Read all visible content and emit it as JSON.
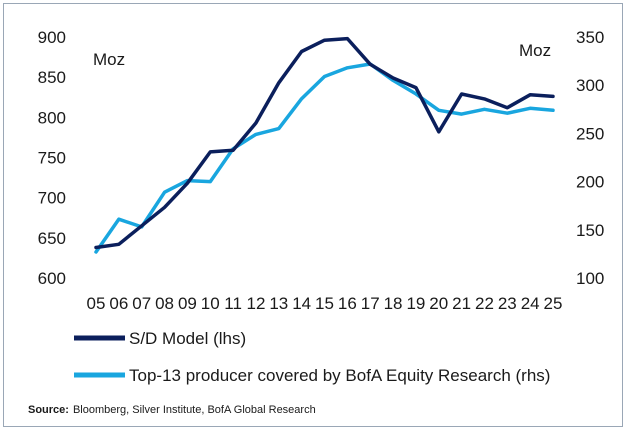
{
  "chart_data": {
    "type": "line",
    "categories": [
      "05",
      "06",
      "07",
      "08",
      "09",
      "10",
      "11",
      "12",
      "13",
      "14",
      "15",
      "16",
      "17",
      "18",
      "19",
      "20",
      "21",
      "22",
      "23",
      "24",
      "25"
    ],
    "series": [
      {
        "name": "S/D Model (lhs)",
        "axis": "left",
        "color": "#0b1f5c",
        "values": [
          638,
          642,
          665,
          688,
          718,
          757,
          759,
          793,
          843,
          882,
          896,
          898,
          866,
          849,
          837,
          782,
          829,
          823,
          812,
          828,
          826
        ]
      },
      {
        "name": "Top-13 producer covered by BofA Equity Research (rhs)",
        "axis": "right",
        "color": "#19a6df",
        "values": [
          127,
          161,
          153,
          189,
          201,
          200,
          234,
          249,
          255,
          286,
          309,
          318,
          322,
          305,
          291,
          274,
          270,
          275,
          271,
          276,
          274
        ]
      }
    ],
    "left_axis": {
      "unit": "Moz",
      "range": [
        600,
        900
      ],
      "ticks": [
        "900",
        "850",
        "800",
        "750",
        "700",
        "650",
        "600"
      ]
    },
    "right_axis": {
      "unit": "Moz",
      "range": [
        100,
        350
      ],
      "ticks": [
        "350",
        "300",
        "250",
        "200",
        "150",
        "100"
      ]
    },
    "grid": false,
    "legend_position": "bottom-left",
    "source_label": "Source:",
    "source_text": "Bloomberg, Silver Institute, BofA Global Research"
  }
}
